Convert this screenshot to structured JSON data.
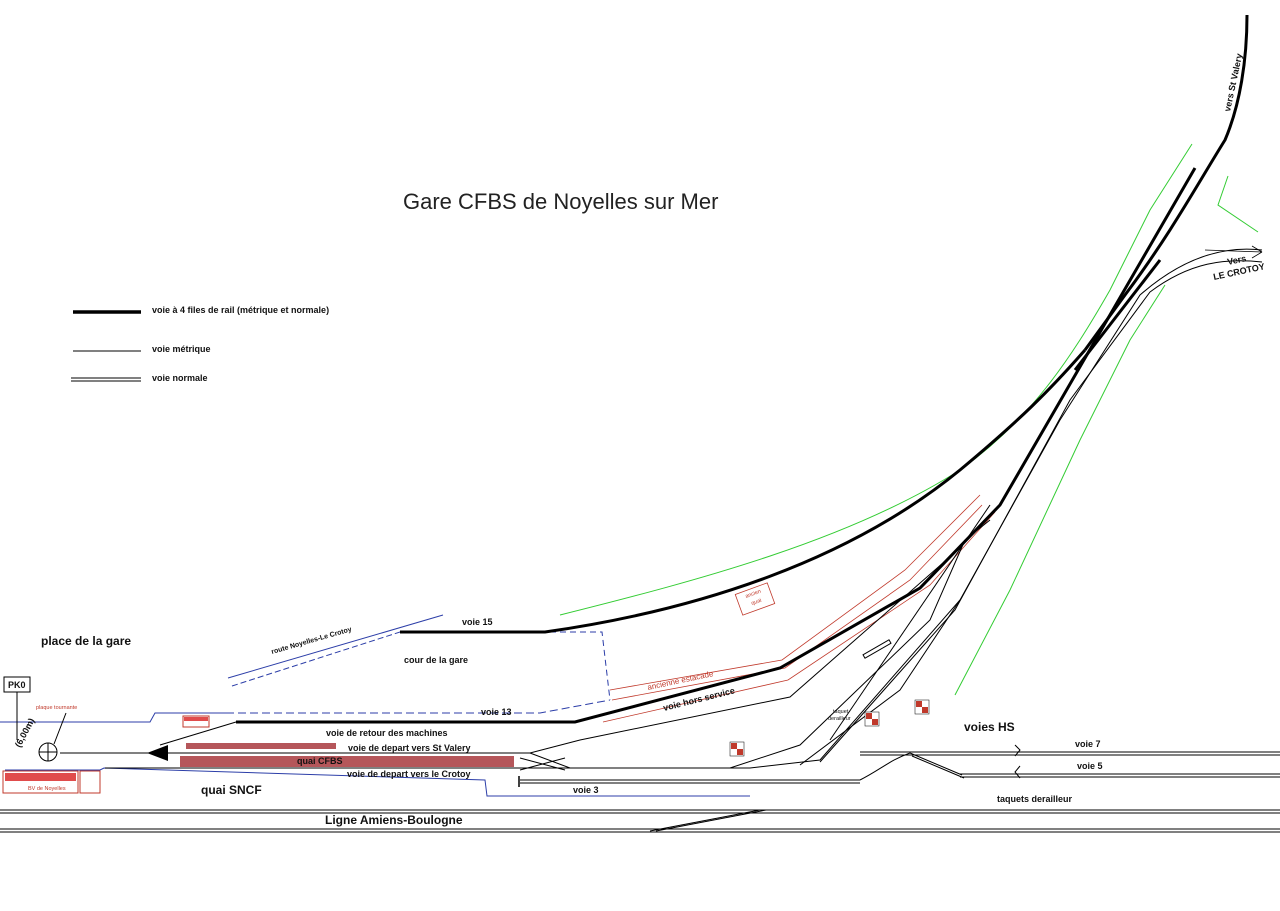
{
  "title": "Gare CFBS de Noyelles sur Mer",
  "legend": [
    {
      "label": "voie à 4 files de rail (métrique et normale)",
      "style": "thick"
    },
    {
      "label": "voie métrique",
      "style": "thin"
    },
    {
      "label": "voie normale",
      "style": "double"
    }
  ],
  "labels": {
    "vers_st_valery": "vers St Valery",
    "vers_le_crotoy_1": "Vers",
    "vers_le_crotoy_2": "LE CROTOY",
    "place_de_la_gare": "place de la gare",
    "pk0": "PK0",
    "plaque_tournante": "plaque tournante",
    "distance": "(6,00m)",
    "route": "route Noyelles-Le Crotoy",
    "cour": "cour de la gare",
    "voie15": "voie 15",
    "voie13": "voie 13",
    "voie_retour": "voie de retour des machines",
    "voie_depart_st_valery": "voie de depart vers St Valery",
    "quai_cfbs": "quai CFBS",
    "voie_depart_crotoy": "voie de depart vers le Crotoy",
    "quai_sncf": "quai SNCF",
    "voie3": "voie 3",
    "ligne": "Ligne Amiens-Boulogne",
    "ancienne_estacade": "ancienne estacade",
    "voie_hors_service": "voie hors service",
    "ancien_quai_1": "ancien",
    "ancien_quai_2": "quai",
    "taquet_1": "taquet",
    "taquet_2": "derailleur",
    "voies_hs": "voies HS",
    "voie7": "voie 7",
    "voie5": "voie 5",
    "taquets_derailleur": "taquets derailleur",
    "bv": "BV de Noyelles"
  },
  "colors": {
    "track": "#000000",
    "road": "#2c3ea8",
    "green": "#33cc33",
    "red": "#c0392b",
    "quai": "#b5565a"
  }
}
